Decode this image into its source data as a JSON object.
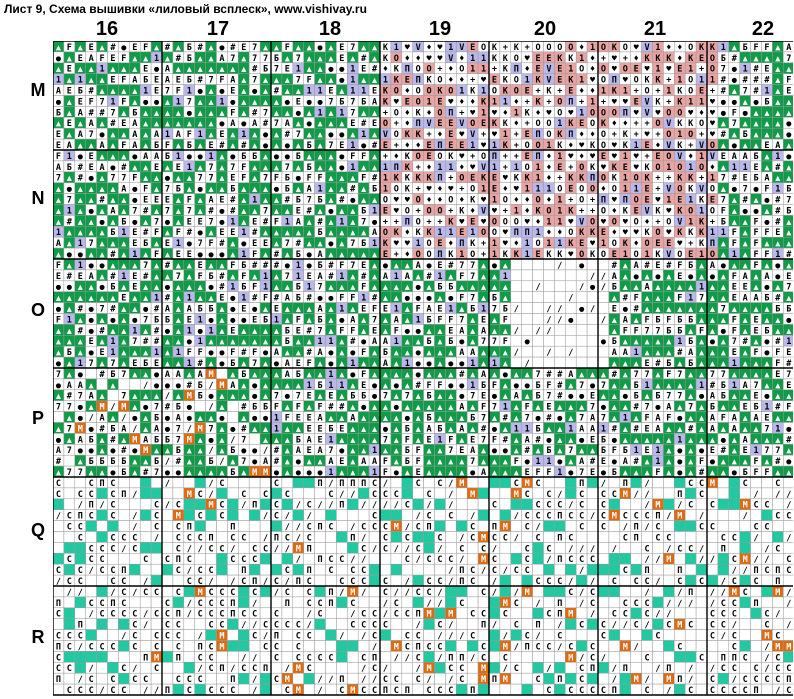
{
  "header": {
    "title": "Лист 9, Схема вышивки «лиловый всплеск», www.vishivay.ru"
  },
  "columns": [
    "16",
    "17",
    "18",
    "19",
    "20",
    "21",
    "22"
  ],
  "rows": [
    "M",
    "N",
    "O",
    "P",
    "Q",
    "R"
  ],
  "colors": {
    "green": "#0f9b47",
    "pink": "#e8a3a3",
    "lavender": "#b8b8ec",
    "orange": "#e06a10",
    "black": "#000000",
    "teal": "#22c9a0",
    "white": "#ffffff",
    "grid": "#9a9a9a",
    "major_grid": "#000000"
  },
  "legend_symbols": [
    "▲",
    "♣",
    "●",
    "♥",
    "♦",
    "◆",
    "◢",
    "∕",
    "1",
    "7",
    "#",
    "A",
    "Б",
    "C",
    "E",
    "F",
    "H",
    "K",
    "M",
    "O",
    "V",
    "П",
    "+"
  ]
}
